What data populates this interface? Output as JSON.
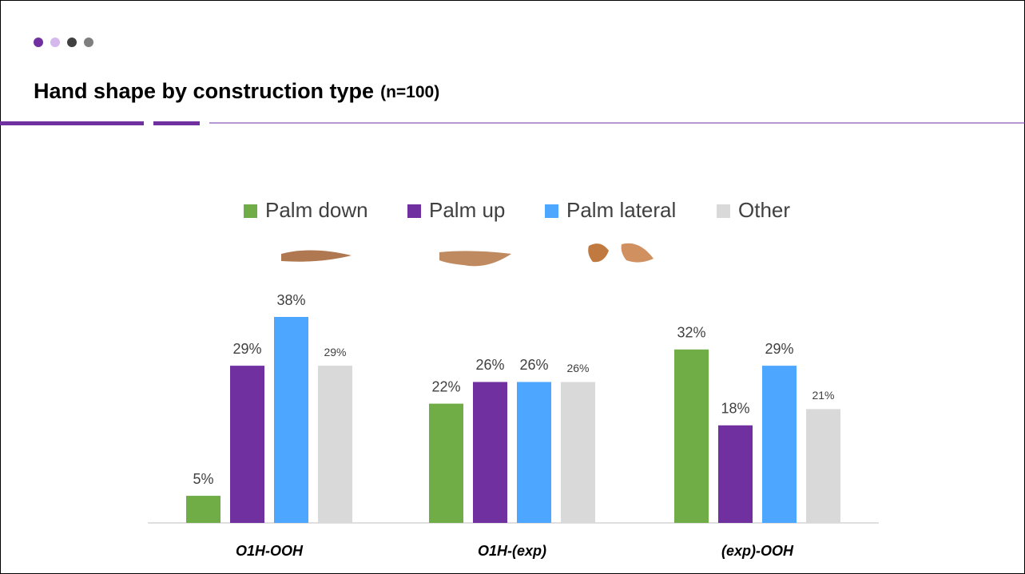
{
  "chart_data": {
    "type": "bar",
    "title": "Hand shape by construction type",
    "subtitle": "(n=100)",
    "categories": [
      "O1H-OOH",
      "O1H-(exp)",
      "(exp)-OOH"
    ],
    "series": [
      {
        "name": "Palm down",
        "color": "#70ad47",
        "values": [
          5,
          22,
          32
        ],
        "value_labels": [
          "5%",
          "22%",
          "32%"
        ]
      },
      {
        "name": "Palm up",
        "color": "#7030a0",
        "values": [
          29,
          26,
          18
        ],
        "value_labels": [
          "29%",
          "26%",
          "18%"
        ]
      },
      {
        "name": "Palm lateral",
        "color": "#4da6ff",
        "values": [
          38,
          26,
          29
        ],
        "value_labels": [
          "38%",
          "26%",
          "29%"
        ]
      },
      {
        "name": "Other",
        "color": "#d9d9d9",
        "values": [
          29,
          26,
          21
        ],
        "value_labels": [
          "29%",
          "26%",
          "21%"
        ]
      }
    ],
    "grid": false
  }
}
